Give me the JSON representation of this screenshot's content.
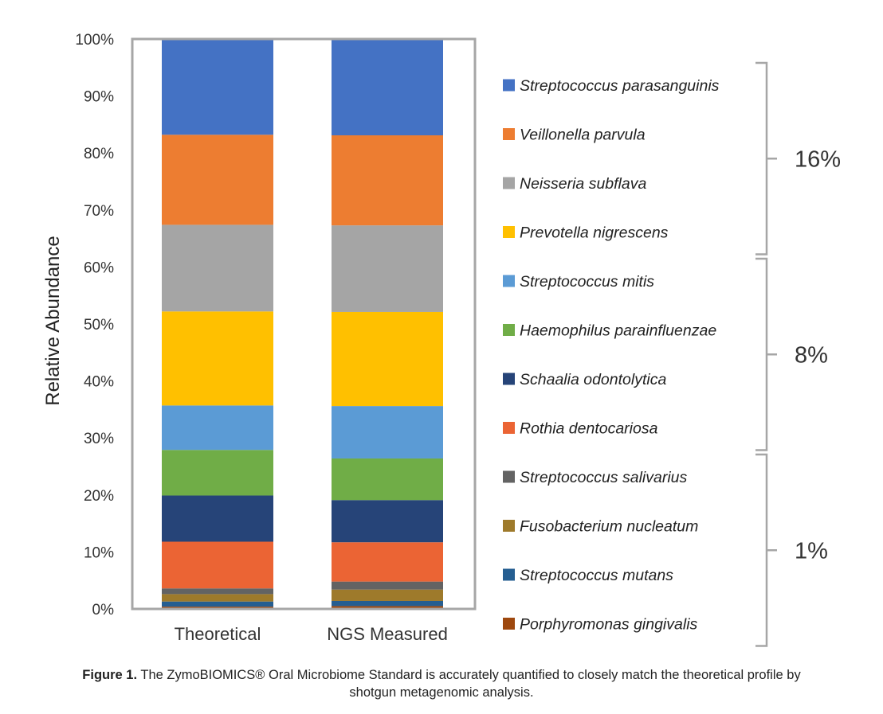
{
  "chart_data": {
    "type": "bar",
    "stacked": true,
    "ylabel": "Relative Abundance",
    "ylim": [
      0,
      100
    ],
    "yticks": [
      "0%",
      "10%",
      "20%",
      "30%",
      "40%",
      "50%",
      "60%",
      "70%",
      "80%",
      "90%",
      "100%"
    ],
    "categories": [
      "Theoretical",
      "NGS Measured"
    ],
    "series": [
      {
        "name": "Porphyromonas gingivalis",
        "color": "#9E480E",
        "values": [
          0.4,
          0.5
        ]
      },
      {
        "name": "Streptococcus mutans",
        "color": "#255E91",
        "values": [
          0.9,
          0.9
        ]
      },
      {
        "name": "Fusobacterium nucleatum",
        "color": "#9E7A2B",
        "values": [
          1.3,
          2.0
        ]
      },
      {
        "name": "Streptococcus salivarius",
        "color": "#636363",
        "values": [
          1.0,
          1.4
        ]
      },
      {
        "name": "Rothia dentocariosa",
        "color": "#EB6434",
        "values": [
          8.2,
          6.9
        ]
      },
      {
        "name": "Schaalia odontolytica",
        "color": "#264478",
        "values": [
          8.1,
          7.4
        ]
      },
      {
        "name": "Haemophilus parainfluenzae",
        "color": "#70AD47",
        "values": [
          8.0,
          7.3
        ]
      },
      {
        "name": "Streptococcus mitis",
        "color": "#5B9BD5",
        "values": [
          7.8,
          9.2
        ]
      },
      {
        "name": "Prevotella nigrescens",
        "color": "#FFC000",
        "values": [
          16.5,
          16.5
        ]
      },
      {
        "name": "Neisseria subflava",
        "color": "#A5A5A5",
        "values": [
          15.2,
          15.2
        ]
      },
      {
        "name": "Veillonella parvula",
        "color": "#ED7D31",
        "values": [
          15.8,
          15.8
        ]
      },
      {
        "name": "Streptococcus parasanguinis",
        "color": "#4472C4",
        "values": [
          16.8,
          16.9
        ]
      }
    ],
    "legend_order": [
      "Streptococcus parasanguinis",
      "Veillonella parvula",
      "Neisseria subflava",
      "Prevotella nigrescens",
      "Streptococcus mitis",
      "Haemophilus parainfluenzae",
      "Schaalia odontolytica",
      "Rothia dentocariosa",
      "Streptococcus salivarius",
      "Fusobacterium nucleatum",
      "Streptococcus mutans",
      "Porphyromonas gingivalis"
    ],
    "legend_groups": [
      {
        "label": "16%",
        "count": 4
      },
      {
        "label": "8%",
        "count": 4
      },
      {
        "label": "1%",
        "count": 4
      }
    ],
    "legend": "right"
  },
  "caption": {
    "label": "Figure 1.",
    "text": "The ZymoBIOMICS® Oral Microbiome Standard is accurately quantified to closely match the theoretical profile by shotgun metagenomic analysis."
  }
}
